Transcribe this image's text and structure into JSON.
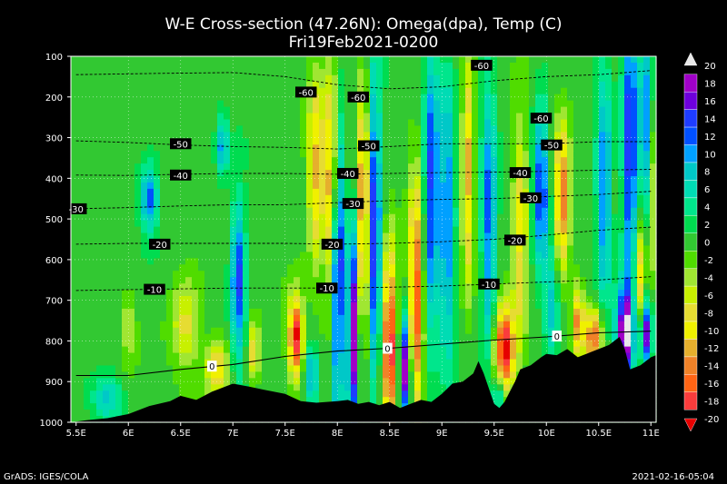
{
  "chart_data": {
    "type": "heatmap",
    "title": "W-E Cross-section (47.26N): Omega(dpa), Temp (C)",
    "subtitle": "Fri19Feb2021-0200",
    "xlabel": "",
    "ylabel": "",
    "x_ticks": [
      "5.5E",
      "6E",
      "6.5E",
      "7E",
      "7.5E",
      "8E",
      "8.5E",
      "9E",
      "9.5E",
      "10E",
      "10.5E",
      "11E"
    ],
    "x_tick_values": [
      5.5,
      6,
      6.5,
      7,
      7.5,
      8,
      8.5,
      9,
      9.5,
      10,
      10.5,
      11
    ],
    "y_ticks": [
      100,
      200,
      300,
      400,
      500,
      600,
      700,
      800,
      900,
      1000
    ],
    "xlim": [
      5.45,
      11.05
    ],
    "ylim": [
      100,
      1000
    ],
    "y_reversed": true,
    "grid": true,
    "colorbar": {
      "labels": [
        "20",
        "18",
        "16",
        "14",
        "12",
        "10",
        "8",
        "6",
        "4",
        "2",
        "0",
        "-2",
        "-4",
        "-6",
        "-8",
        "-10",
        "-12",
        "-14",
        "-16",
        "-18",
        "-20"
      ],
      "colors": [
        "#e8e8e8",
        "#a000c8",
        "#6e00dc",
        "#1e3cff",
        "#0050ff",
        "#00a0ff",
        "#00c8c8",
        "#00dcb4",
        "#00e68c",
        "#00dc50",
        "#32c832",
        "#50dc00",
        "#a0e632",
        "#c8f000",
        "#e6dc32",
        "#f0f000",
        "#e6af2d",
        "#f08228",
        "#ff6414",
        "#fa3c3c",
        "#e60000"
      ]
    },
    "omega_features": [
      {
        "x": 6.2,
        "p": 450,
        "sx": 0.06,
        "sp": 60,
        "v": 12
      },
      {
        "x": 5.8,
        "p": 940,
        "sx": 0.1,
        "sp": 40,
        "v": 8
      },
      {
        "x": 6.55,
        "p": 760,
        "sx": 0.1,
        "sp": 80,
        "v": -8
      },
      {
        "x": 6.0,
        "p": 760,
        "sx": 0.05,
        "sp": 60,
        "v": -5
      },
      {
        "x": 6.85,
        "p": 870,
        "sx": 0.08,
        "sp": 50,
        "v": -10
      },
      {
        "x": 6.9,
        "p": 320,
        "sx": 0.04,
        "sp": 50,
        "v": 10
      },
      {
        "x": 7.05,
        "p": 650,
        "sx": 0.05,
        "sp": 140,
        "v": 14
      },
      {
        "x": 7.2,
        "p": 830,
        "sx": 0.04,
        "sp": 50,
        "v": -10
      },
      {
        "x": 7.6,
        "p": 790,
        "sx": 0.05,
        "sp": 70,
        "v": -20
      },
      {
        "x": 7.75,
        "p": 880,
        "sx": 0.05,
        "sp": 50,
        "v": 10
      },
      {
        "x": 7.8,
        "p": 380,
        "sx": 0.06,
        "sp": 160,
        "v": -12
      },
      {
        "x": 7.95,
        "p": 420,
        "sx": 0.04,
        "sp": 200,
        "v": -16
      },
      {
        "x": 8.0,
        "p": 620,
        "sx": 0.04,
        "sp": 250,
        "v": 20
      },
      {
        "x": 8.15,
        "p": 780,
        "sx": 0.04,
        "sp": 180,
        "v": 20
      },
      {
        "x": 8.25,
        "p": 500,
        "sx": 0.04,
        "sp": 220,
        "v": -18
      },
      {
        "x": 8.35,
        "p": 520,
        "sx": 0.05,
        "sp": 260,
        "v": 16
      },
      {
        "x": 8.5,
        "p": 800,
        "sx": 0.05,
        "sp": 160,
        "v": -20
      },
      {
        "x": 8.65,
        "p": 870,
        "sx": 0.04,
        "sp": 90,
        "v": 20
      },
      {
        "x": 8.75,
        "p": 700,
        "sx": 0.05,
        "sp": 200,
        "v": -18
      },
      {
        "x": 8.9,
        "p": 430,
        "sx": 0.05,
        "sp": 250,
        "v": 14
      },
      {
        "x": 9.05,
        "p": 500,
        "sx": 0.05,
        "sp": 250,
        "v": 12
      },
      {
        "x": 9.25,
        "p": 380,
        "sx": 0.04,
        "sp": 200,
        "v": -12
      },
      {
        "x": 9.45,
        "p": 500,
        "sx": 0.05,
        "sp": 250,
        "v": 12
      },
      {
        "x": 9.6,
        "p": 820,
        "sx": 0.07,
        "sp": 80,
        "v": -20
      },
      {
        "x": 9.55,
        "p": 930,
        "sx": 0.04,
        "sp": 30,
        "v": 10
      },
      {
        "x": 9.75,
        "p": 520,
        "sx": 0.05,
        "sp": 180,
        "v": -10
      },
      {
        "x": 9.95,
        "p": 420,
        "sx": 0.05,
        "sp": 140,
        "v": 14
      },
      {
        "x": 10.15,
        "p": 450,
        "sx": 0.05,
        "sp": 120,
        "v": -16
      },
      {
        "x": 10.05,
        "p": 720,
        "sx": 0.05,
        "sp": 100,
        "v": 8
      },
      {
        "x": 10.3,
        "p": 750,
        "sx": 0.04,
        "sp": 60,
        "v": -14
      },
      {
        "x": 10.45,
        "p": 790,
        "sx": 0.06,
        "sp": 50,
        "v": -16
      },
      {
        "x": 10.55,
        "p": 420,
        "sx": 0.05,
        "sp": 200,
        "v": 12
      },
      {
        "x": 10.75,
        "p": 780,
        "sx": 0.06,
        "sp": 80,
        "v": 20
      },
      {
        "x": 10.8,
        "p": 330,
        "sx": 0.05,
        "sp": 250,
        "v": 16
      },
      {
        "x": 10.95,
        "p": 300,
        "sx": 0.04,
        "sp": 200,
        "v": 12
      },
      {
        "x": 10.95,
        "p": 780,
        "sx": 0.04,
        "sp": 60,
        "v": 18
      },
      {
        "x": 10.9,
        "p": 650,
        "sx": 0.04,
        "sp": 120,
        "v": -12
      },
      {
        "x": 11.0,
        "p": 450,
        "sx": 0.03,
        "sp": 150,
        "v": -8
      }
    ],
    "temperature_contours": [
      {
        "label": "-60",
        "points": [
          [
            5.5,
            145
          ],
          [
            6.3,
            142
          ],
          [
            7.0,
            140
          ],
          [
            7.5,
            150
          ],
          [
            8.0,
            170
          ],
          [
            8.5,
            180
          ],
          [
            9.0,
            175
          ],
          [
            9.5,
            160
          ],
          [
            10.0,
            150
          ],
          [
            10.5,
            145
          ],
          [
            11.0,
            135
          ]
        ],
        "label_pos": [
          [
            9.38,
            122
          ],
          [
            7.7,
            188
          ],
          [
            8.2,
            200
          ],
          [
            9.95,
            252
          ]
        ]
      },
      {
        "label": "-50",
        "points": [
          [
            5.5,
            308
          ],
          [
            6.0,
            312
          ],
          [
            6.5,
            318
          ],
          [
            7.0,
            322
          ],
          [
            7.5,
            324
          ],
          [
            8.0,
            328
          ],
          [
            8.5,
            322
          ],
          [
            9.0,
            315
          ],
          [
            9.5,
            315
          ],
          [
            10.0,
            315
          ],
          [
            10.5,
            310
          ],
          [
            11.0,
            310
          ]
        ],
        "label_pos": [
          [
            6.5,
            315
          ],
          [
            8.3,
            320
          ],
          [
            10.05,
            318
          ]
        ]
      },
      {
        "label": "-40",
        "points": [
          [
            5.5,
            392
          ],
          [
            6.0,
            393
          ],
          [
            6.5,
            390
          ],
          [
            7.0,
            388
          ],
          [
            7.5,
            388
          ],
          [
            8.0,
            390
          ],
          [
            8.5,
            388
          ],
          [
            9.0,
            386
          ],
          [
            9.5,
            385
          ],
          [
            10.0,
            383
          ],
          [
            10.5,
            380
          ],
          [
            11.0,
            378
          ]
        ],
        "label_pos": [
          [
            6.5,
            392
          ],
          [
            8.1,
            388
          ],
          [
            9.75,
            386
          ]
        ]
      },
      {
        "label": "-30",
        "points": [
          [
            5.5,
            475
          ],
          [
            6.0,
            472
          ],
          [
            6.5,
            468
          ],
          [
            7.0,
            465
          ],
          [
            7.5,
            465
          ],
          [
            8.0,
            460
          ],
          [
            8.5,
            455
          ],
          [
            9.0,
            452
          ],
          [
            9.5,
            450
          ],
          [
            10.0,
            445
          ],
          [
            10.5,
            440
          ],
          [
            11.0,
            432
          ]
        ],
        "label_pos": [
          [
            5.5,
            475
          ],
          [
            8.15,
            462
          ],
          [
            9.85,
            448
          ]
        ]
      },
      {
        "label": "-20",
        "points": [
          [
            5.5,
            562
          ],
          [
            6.0,
            560
          ],
          [
            6.5,
            560
          ],
          [
            7.0,
            560
          ],
          [
            7.5,
            560
          ],
          [
            8.0,
            562
          ],
          [
            8.5,
            560
          ],
          [
            9.0,
            556
          ],
          [
            9.5,
            550
          ],
          [
            10.0,
            540
          ],
          [
            10.5,
            528
          ],
          [
            11.0,
            520
          ]
        ],
        "label_pos": [
          [
            6.3,
            562
          ],
          [
            7.95,
            562
          ],
          [
            9.7,
            552
          ]
        ]
      },
      {
        "label": "-10",
        "points": [
          [
            5.5,
            676
          ],
          [
            6.0,
            674
          ],
          [
            6.5,
            672
          ],
          [
            7.0,
            670
          ],
          [
            7.5,
            670
          ],
          [
            8.0,
            670
          ],
          [
            8.5,
            668
          ],
          [
            9.0,
            665
          ],
          [
            9.5,
            660
          ],
          [
            10.0,
            655
          ],
          [
            10.5,
            650
          ],
          [
            11.0,
            642
          ]
        ],
        "label_pos": [
          [
            6.25,
            673
          ],
          [
            7.9,
            670
          ],
          [
            9.45,
            660
          ]
        ]
      },
      {
        "label": "0",
        "points": [
          [
            5.5,
            885
          ],
          [
            6.0,
            885
          ],
          [
            6.5,
            870
          ],
          [
            7.0,
            858
          ],
          [
            7.5,
            838
          ],
          [
            8.0,
            825
          ],
          [
            8.5,
            818
          ],
          [
            9.0,
            808
          ],
          [
            9.5,
            798
          ],
          [
            10.0,
            790
          ],
          [
            10.5,
            780
          ],
          [
            11.0,
            776
          ]
        ],
        "label_pos": [
          [
            6.8,
            862
          ],
          [
            8.48,
            818
          ],
          [
            10.1,
            788
          ]
        ]
      }
    ],
    "terrain": [
      [
        5.45,
        1000
      ],
      [
        5.6,
        995
      ],
      [
        5.8,
        990
      ],
      [
        6.0,
        980
      ],
      [
        6.2,
        960
      ],
      [
        6.4,
        948
      ],
      [
        6.5,
        935
      ],
      [
        6.65,
        945
      ],
      [
        6.8,
        925
      ],
      [
        7.0,
        905
      ],
      [
        7.15,
        912
      ],
      [
        7.3,
        920
      ],
      [
        7.5,
        930
      ],
      [
        7.65,
        948
      ],
      [
        7.8,
        952
      ],
      [
        8.0,
        948
      ],
      [
        8.1,
        945
      ],
      [
        8.2,
        955
      ],
      [
        8.3,
        950
      ],
      [
        8.4,
        958
      ],
      [
        8.5,
        950
      ],
      [
        8.6,
        965
      ],
      [
        8.7,
        955
      ],
      [
        8.8,
        945
      ],
      [
        8.9,
        950
      ],
      [
        9.0,
        930
      ],
      [
        9.1,
        905
      ],
      [
        9.2,
        900
      ],
      [
        9.3,
        880
      ],
      [
        9.35,
        850
      ],
      [
        9.4,
        880
      ],
      [
        9.5,
        955
      ],
      [
        9.55,
        965
      ],
      [
        9.6,
        950
      ],
      [
        9.7,
        900
      ],
      [
        9.75,
        870
      ],
      [
        9.85,
        860
      ],
      [
        9.95,
        840
      ],
      [
        10.0,
        832
      ],
      [
        10.1,
        835
      ],
      [
        10.2,
        820
      ],
      [
        10.3,
        840
      ],
      [
        10.4,
        830
      ],
      [
        10.5,
        820
      ],
      [
        10.6,
        810
      ],
      [
        10.7,
        790
      ],
      [
        10.75,
        820
      ],
      [
        10.8,
        870
      ],
      [
        10.9,
        860
      ],
      [
        11.0,
        840
      ],
      [
        11.05,
        835
      ]
    ],
    "terrain_color": "#000000"
  },
  "footer": {
    "left": "GrADS: IGES/COLA",
    "right": "2021-02-16-05:04"
  }
}
